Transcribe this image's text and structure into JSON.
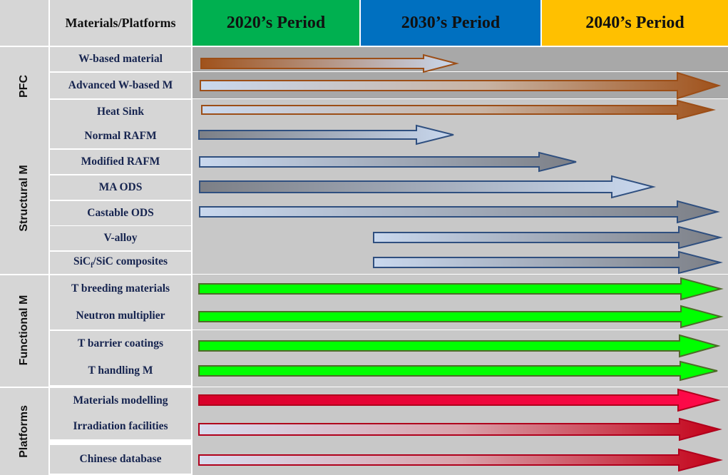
{
  "header": {
    "materials_label": "Materials/Platforms",
    "periods": [
      {
        "label": "2020’s Period",
        "color": "#00b050"
      },
      {
        "label": "2030’s Period",
        "color": "#0070c0"
      },
      {
        "label": "2040’s Period",
        "color": "#ffc000"
      }
    ]
  },
  "groups": [
    {
      "label": "PFC"
    },
    {
      "label": "Structural M"
    },
    {
      "label": "Functional M"
    },
    {
      "label": "Platforms"
    }
  ],
  "rows": [
    {
      "label": "W-based material",
      "group": "PFC",
      "start": "2020s",
      "end": "mid-2030s",
      "style": "brown-to-light"
    },
    {
      "label": "Advanced W-based M",
      "group": "PFC",
      "start": "2020s",
      "end": "2040s+",
      "style": "light-to-brown"
    },
    {
      "label": "Heat Sink",
      "group": "PFC",
      "start": "2020s",
      "end": "2040s+",
      "style": "light-to-brown"
    },
    {
      "label": "Normal RAFM",
      "group": "Structural M",
      "start": "2020s",
      "end": "mid-2030s",
      "style": "gray-to-light"
    },
    {
      "label": "Modified RAFM",
      "group": "Structural M",
      "start": "2020s",
      "end": "early-2040s",
      "style": "light-to-gray"
    },
    {
      "label": "MA ODS",
      "group": "Structural M",
      "start": "2020s",
      "end": "mid-2040s",
      "style": "gray-to-light"
    },
    {
      "label": "Castable ODS",
      "group": "Structural M",
      "start": "2020s",
      "end": "2040s+",
      "style": "light-to-gray"
    },
    {
      "label": "V-alloy",
      "group": "Structural M",
      "start": "2030s",
      "end": "2040s+",
      "style": "light-to-gray"
    },
    {
      "label_main": "SiC",
      "label_sub": "f",
      "label_rest": "/SiC composites",
      "group": "Structural M",
      "start": "2030s",
      "end": "2040s+",
      "style": "light-to-gray"
    },
    {
      "label": "T breeding materials",
      "group": "Functional M",
      "start": "2020s",
      "end": "2040s+",
      "style": "green"
    },
    {
      "label": "Neutron multiplier",
      "group": "Functional M",
      "start": "2020s",
      "end": "2040s+",
      "style": "green"
    },
    {
      "label": "T barrier coatings",
      "group": "Functional M",
      "start": "2020s",
      "end": "2040s+",
      "style": "green"
    },
    {
      "label": "T handling M",
      "group": "Functional M",
      "start": "2020s",
      "end": "2040s+",
      "style": "green"
    },
    {
      "label": "Materials modelling",
      "group": "Platforms",
      "start": "2020s",
      "end": "2040s+",
      "style": "red"
    },
    {
      "label": "Irradiation facilities",
      "group": "Platforms",
      "start": "2020s",
      "end": "2040s+",
      "style": "light-to-red"
    },
    {
      "label": "Chinese database",
      "group": "Platforms",
      "start": "2020s",
      "end": "2040s+",
      "style": "light-to-red"
    }
  ],
  "colors": {
    "brown": "#a0521b",
    "gray": "#7c7f86",
    "light": "#c9d8ee",
    "green": "#00ff00",
    "red": "#d9002a",
    "red_light": "#d8dcef"
  }
}
